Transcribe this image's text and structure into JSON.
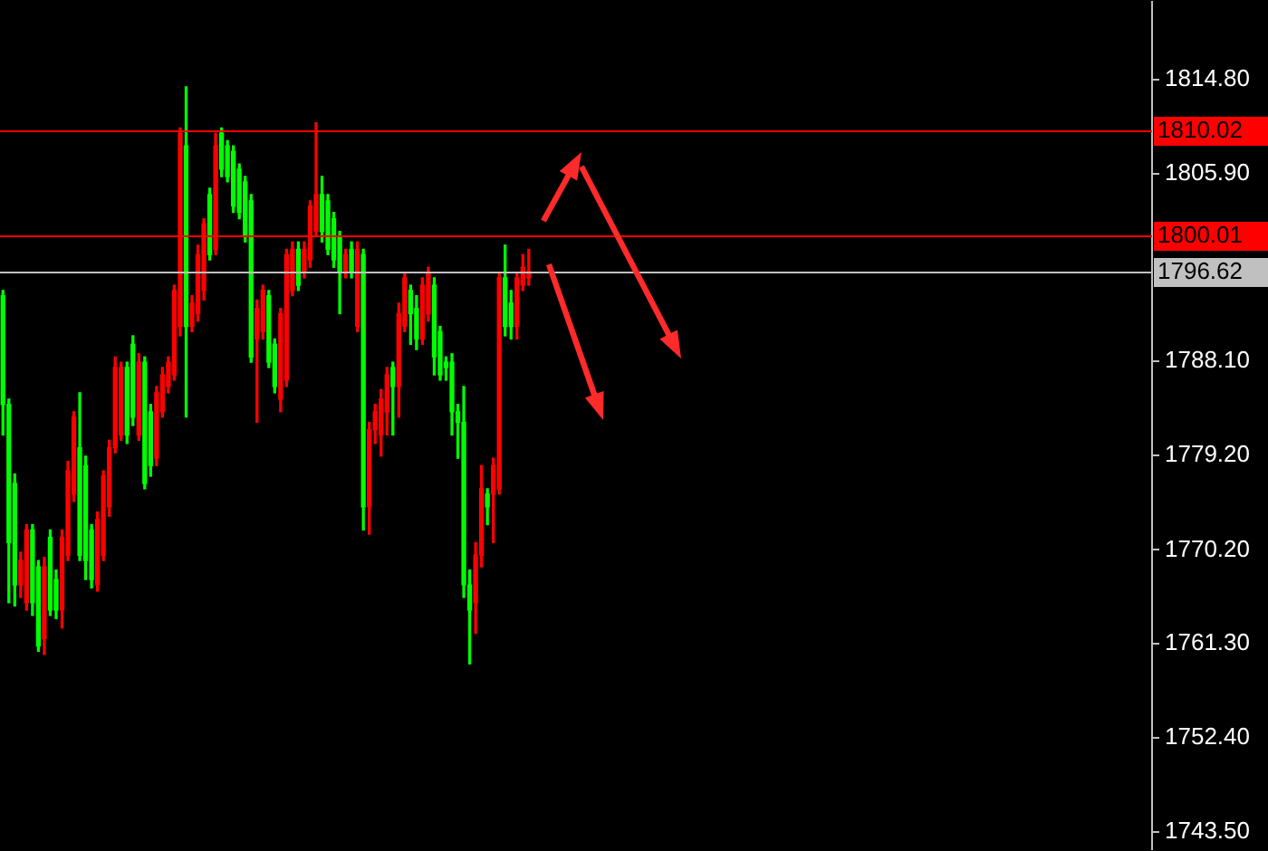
{
  "chart_data": {
    "type": "candlestick",
    "categories": [
      null,
      null,
      null,
      null,
      null,
      null,
      null,
      null,
      null,
      null,
      null,
      null,
      null,
      null,
      null,
      null,
      null,
      null,
      null,
      null,
      null,
      null,
      null,
      null,
      null,
      null,
      null,
      null,
      null,
      null,
      null,
      null,
      null,
      null,
      null,
      null,
      null,
      null,
      null,
      null,
      null,
      null,
      null,
      null,
      null,
      null,
      null,
      null,
      null,
      null,
      null,
      null,
      null,
      null,
      null,
      null,
      null,
      null,
      null,
      null,
      null,
      null,
      null,
      null,
      null,
      null,
      null,
      null,
      null,
      null,
      null,
      null,
      null,
      null,
      null,
      null,
      null,
      null,
      null,
      null,
      null,
      null,
      null,
      null,
      null,
      null,
      null,
      null,
      null,
      null,
      null,
      null,
      null,
      null,
      null,
      null,
      null,
      null,
      null,
      null,
      null,
      null,
      null,
      null,
      null,
      null,
      null,
      null,
      null,
      null,
      null,
      null,
      null,
      null,
      null,
      null,
      null,
      null,
      null,
      null,
      null,
      null,
      null,
      null,
      null,
      null,
      null,
      null,
      null,
      null,
      null,
      null,
      null,
      null,
      null,
      null,
      null,
      null,
      null,
      null,
      null,
      null,
      null,
      null,
      null,
      null,
      null,
      null,
      null,
      null,
      null,
      null,
      null,
      null,
      null,
      null,
      null,
      null,
      null,
      null,
      null,
      null,
      null,
      null,
      null,
      null,
      null,
      null,
      null,
      null,
      null,
      null,
      null,
      null,
      null,
      null,
      null,
      null,
      null,
      null,
      null,
      null,
      null,
      null,
      null,
      null,
      null,
      null,
      null,
      null,
      null,
      null,
      null,
      null,
      null
    ],
    "ohlc": [
      [
        1794.3,
        1794.8,
        1781.1,
        1784.0
      ],
      [
        1784.0,
        1784.5,
        1765.2,
        1770.9
      ],
      [
        1776.5,
        1777.4,
        1764.9,
        1766.9
      ],
      [
        1766.9,
        1770.0,
        1765.7,
        1769.2
      ],
      [
        1765.2,
        1772.6,
        1764.5,
        1772.1
      ],
      [
        1772.1,
        1772.6,
        1764.0,
        1765.2
      ],
      [
        1768.6,
        1769.2,
        1760.6,
        1761.1
      ],
      [
        1761.8,
        1769.5,
        1760.3,
        1768.6
      ],
      [
        1771.4,
        1772.1,
        1764.0,
        1764.5
      ],
      [
        1767.4,
        1768.3,
        1763.7,
        1764.5
      ],
      [
        1764.5,
        1772.1,
        1762.8,
        1771.4
      ],
      [
        1769.7,
        1778.6,
        1769.2,
        1777.7
      ],
      [
        1775.5,
        1783.3,
        1774.8,
        1782.8
      ],
      [
        1779.9,
        1785.1,
        1769.2,
        1769.7
      ],
      [
        1778.2,
        1779.1,
        1767.4,
        1769.2
      ],
      [
        1772.1,
        1772.6,
        1766.6,
        1767.4
      ],
      [
        1766.9,
        1773.8,
        1766.3,
        1773.1
      ],
      [
        1769.7,
        1777.7,
        1769.2,
        1777.2
      ],
      [
        1774.3,
        1780.6,
        1773.4,
        1779.9
      ],
      [
        1779.9,
        1788.5,
        1779.4,
        1787.5
      ],
      [
        1781.1,
        1788.0,
        1780.6,
        1787.5
      ],
      [
        1787.5,
        1788.0,
        1780.3,
        1781.1
      ],
      [
        1789.7,
        1790.5,
        1782.0,
        1782.8
      ],
      [
        1781.1,
        1788.8,
        1780.6,
        1788.0
      ],
      [
        1788.0,
        1788.5,
        1776.0,
        1776.5
      ],
      [
        1783.3,
        1784.0,
        1777.2,
        1778.2
      ],
      [
        1778.9,
        1785.7,
        1778.2,
        1785.1
      ],
      [
        1783.3,
        1787.5,
        1782.8,
        1786.8
      ],
      [
        1785.7,
        1788.5,
        1785.1,
        1788.0
      ],
      [
        1786.8,
        1795.3,
        1786.3,
        1794.8
      ],
      [
        1791.4,
        1810.2,
        1790.5,
        1809.7
      ],
      [
        1808.5,
        1814.1,
        1782.8,
        1791.4
      ],
      [
        1791.4,
        1794.3,
        1790.9,
        1793.6
      ],
      [
        1792.6,
        1799.1,
        1791.9,
        1798.2
      ],
      [
        1794.8,
        1801.6,
        1793.9,
        1801.1
      ],
      [
        1803.9,
        1804.5,
        1797.7,
        1798.2
      ],
      [
        1798.7,
        1809.7,
        1798.2,
        1808.5
      ],
      [
        1809.7,
        1810.2,
        1805.6,
        1806.3
      ],
      [
        1808.5,
        1809.0,
        1805.1,
        1805.6
      ],
      [
        1808.0,
        1808.5,
        1802.2,
        1802.8
      ],
      [
        1806.3,
        1806.8,
        1801.6,
        1802.2
      ],
      [
        1805.1,
        1805.6,
        1799.4,
        1799.9
      ],
      [
        1803.3,
        1803.9,
        1788.0,
        1788.5
      ],
      [
        1790.2,
        1793.9,
        1782.3,
        1793.1
      ],
      [
        1790.9,
        1795.3,
        1790.2,
        1794.8
      ],
      [
        1794.3,
        1794.8,
        1787.5,
        1788.0
      ],
      [
        1789.7,
        1790.2,
        1785.1,
        1785.7
      ],
      [
        1784.5,
        1793.1,
        1783.3,
        1792.6
      ],
      [
        1786.3,
        1798.7,
        1785.7,
        1798.2
      ],
      [
        1794.8,
        1799.4,
        1794.3,
        1798.7
      ],
      [
        1798.7,
        1799.4,
        1794.8,
        1795.3
      ],
      [
        1796.5,
        1799.4,
        1796.0,
        1798.7
      ],
      [
        1797.7,
        1803.3,
        1797.0,
        1802.8
      ],
      [
        1800.4,
        1810.7,
        1799.9,
        1803.9
      ],
      [
        1803.9,
        1805.6,
        1799.4,
        1800.4
      ],
      [
        1803.3,
        1803.9,
        1798.2,
        1798.7
      ],
      [
        1801.6,
        1802.2,
        1797.0,
        1797.7
      ],
      [
        1799.9,
        1800.4,
        1792.6,
        1796.5
      ],
      [
        1796.5,
        1798.7,
        1796.0,
        1798.2
      ],
      [
        1798.7,
        1799.4,
        1796.0,
        1796.5
      ],
      [
        1791.4,
        1799.4,
        1790.9,
        1798.7
      ],
      [
        1798.2,
        1798.7,
        1772.1,
        1774.3
      ],
      [
        1774.3,
        1782.3,
        1771.7,
        1781.6
      ],
      [
        1781.6,
        1784.0,
        1780.3,
        1783.3
      ],
      [
        1781.1,
        1785.4,
        1779.1,
        1784.5
      ],
      [
        1783.3,
        1787.5,
        1781.1,
        1786.8
      ],
      [
        1787.5,
        1788.0,
        1781.1,
        1785.7
      ],
      [
        1785.7,
        1793.6,
        1782.8,
        1792.6
      ],
      [
        1791.4,
        1796.5,
        1790.9,
        1796.0
      ],
      [
        1794.8,
        1795.3,
        1789.7,
        1792.6
      ],
      [
        1793.1,
        1794.3,
        1789.2,
        1790.2
      ],
      [
        1790.2,
        1796.0,
        1789.7,
        1795.3
      ],
      [
        1792.6,
        1797.0,
        1791.9,
        1796.5
      ],
      [
        1795.3,
        1796.0,
        1786.8,
        1788.5
      ],
      [
        1790.9,
        1791.4,
        1786.3,
        1786.8
      ],
      [
        1788.0,
        1788.5,
        1786.3,
        1787.5
      ],
      [
        1788.0,
        1788.8,
        1781.1,
        1783.3
      ],
      [
        1783.3,
        1784.0,
        1778.9,
        1782.3
      ],
      [
        1782.3,
        1785.7,
        1765.7,
        1766.9
      ],
      [
        1766.9,
        1768.3,
        1759.4,
        1764.5
      ],
      [
        1765.2,
        1770.9,
        1762.3,
        1769.7
      ],
      [
        1769.7,
        1778.2,
        1768.6,
        1776.0
      ],
      [
        1775.5,
        1776.0,
        1772.6,
        1774.3
      ],
      [
        1775.5,
        1778.9,
        1770.9,
        1778.2
      ],
      [
        1776.0,
        1796.5,
        1775.5,
        1796.0
      ],
      [
        1796.0,
        1799.1,
        1790.5,
        1791.4
      ],
      [
        1793.6,
        1794.8,
        1790.2,
        1791.4
      ],
      [
        1791.4,
        1796.5,
        1790.2,
        1796.0
      ],
      [
        1795.3,
        1798.2,
        1794.8,
        1797.0
      ],
      [
        1796.0,
        1798.7,
        1795.3,
        1796.6
      ],
      null,
      null,
      null,
      null,
      null,
      null,
      null,
      null,
      null,
      null,
      null,
      null,
      null,
      null,
      null,
      null,
      null,
      null,
      null,
      null,
      null,
      null,
      null,
      null,
      null,
      null,
      null,
      null,
      null,
      null,
      null,
      null,
      null,
      null,
      null,
      null,
      null,
      null,
      null,
      null,
      null,
      null,
      null,
      null,
      null,
      null,
      null,
      null,
      null,
      null,
      null,
      null,
      null,
      null,
      null,
      null,
      null,
      null,
      null,
      null,
      null,
      null,
      null,
      null,
      null,
      null,
      null,
      null,
      null,
      null,
      null,
      null,
      null,
      null,
      null,
      null,
      null,
      null,
      null,
      null,
      null,
      null,
      null,
      null,
      null,
      null,
      null,
      null,
      null,
      null,
      null,
      null,
      null,
      null,
      null,
      null,
      null,
      null,
      null,
      null,
      null,
      null,
      null,
      null,
      null
    ],
    "colors": [
      "#00ff00",
      "#00ff00",
      "#00ff00",
      "#ff0000",
      "#ff0000",
      "#00ff00",
      "#00ff00",
      "#ff0000",
      "#00ff00",
      "#00ff00",
      "#ff0000",
      "#ff0000",
      "#ff0000",
      "#00ff00",
      "#00ff00",
      "#00ff00",
      "#ff0000",
      "#ff0000",
      "#ff0000",
      "#ff0000",
      "#ff0000",
      "#00ff00",
      "#00ff00",
      "#ff0000",
      "#00ff00",
      "#00ff00",
      "#ff0000",
      "#ff0000",
      "#ff0000",
      "#ff0000",
      "#ff0000",
      "#00ff00",
      "#ff0000",
      "#ff0000",
      "#ff0000",
      "#00ff00",
      "#ff0000",
      "#00ff00",
      "#00ff00",
      "#00ff00",
      "#00ff00",
      "#00ff00",
      "#00ff00",
      "#ff0000",
      "#ff0000",
      "#00ff00",
      "#00ff00",
      "#ff0000",
      "#ff0000",
      "#ff0000",
      "#00ff00",
      "#ff0000",
      "#ff0000",
      "#ff0000",
      "#00ff00",
      "#00ff00",
      "#00ff00",
      "#00ff00",
      "#ff0000",
      "#00ff00",
      "#ff0000",
      "#00ff00",
      "#ff0000",
      "#ff0000",
      "#ff0000",
      "#ff0000",
      "#00ff00",
      "#ff0000",
      "#ff0000",
      "#00ff00",
      "#00ff00",
      "#ff0000",
      "#ff0000",
      "#00ff00",
      "#00ff00",
      "#00ff00",
      "#00ff00",
      "#00ff00",
      "#00ff00",
      "#00ff00",
      "#ff0000",
      "#ff0000",
      "#00ff00",
      "#ff0000",
      "#ff0000",
      "#00ff00",
      "#00ff00",
      "#ff0000",
      "#ff0000",
      "#ff0000",
      null,
      null,
      null,
      null,
      null,
      null,
      null,
      null,
      null,
      null,
      null,
      null,
      null,
      null,
      null,
      null,
      null,
      null,
      null,
      null,
      null,
      null,
      null,
      null,
      null,
      null,
      null,
      null,
      null,
      null,
      null,
      null,
      null,
      null,
      null,
      null,
      null,
      null,
      null,
      null,
      null,
      null,
      null,
      null,
      null,
      null,
      null,
      null,
      null,
      null,
      null,
      null,
      null,
      null,
      null,
      null,
      null,
      null,
      null,
      null,
      null,
      null,
      null,
      null,
      null,
      null,
      null,
      null,
      null,
      null,
      null,
      null,
      null,
      null,
      null,
      null,
      null,
      null,
      null,
      null,
      null,
      null,
      null,
      null,
      null,
      null,
      null,
      null,
      null,
      null,
      null,
      null,
      null,
      null,
      null,
      null,
      null,
      null,
      null,
      null,
      null,
      null,
      null,
      null,
      null
    ],
    "ylim": [
      1741.8,
      1822.2
    ],
    "yticks": [
      {
        "value": 1814.8,
        "label": "1814.80"
      },
      {
        "value": 1805.9,
        "label": "1805.90"
      },
      {
        "value": 1788.1,
        "label": "1788.10"
      },
      {
        "value": 1779.2,
        "label": "1779.20"
      },
      {
        "value": 1770.2,
        "label": "1770.20"
      },
      {
        "value": 1761.3,
        "label": "1761.30"
      },
      {
        "value": 1752.4,
        "label": "1752.40"
      },
      {
        "value": 1743.5,
        "label": "1743.50"
      }
    ],
    "ref_lines": [
      {
        "axis": "y",
        "value": 1810.02,
        "label": "1810.02",
        "color": "#ff0000"
      },
      {
        "axis": "y",
        "value": 1800.01,
        "label": "1800.01",
        "color": "#ff0000"
      },
      {
        "axis": "y",
        "value": 1796.62,
        "label": "1796.62",
        "color": "#c0c0c0"
      }
    ],
    "grid": false,
    "tick_labels": "y"
  }
}
